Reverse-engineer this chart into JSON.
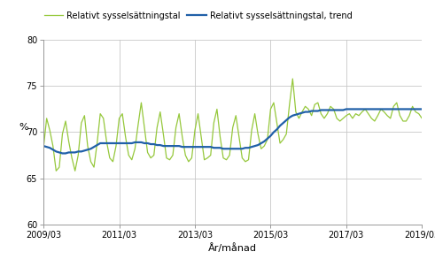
{
  "title": "",
  "ylabel": "%",
  "xlabel": "År/månad",
  "ylim": [
    60,
    80
  ],
  "yticks": [
    60,
    65,
    70,
    75,
    80
  ],
  "xtick_labels": [
    "2009/03",
    "2011/03",
    "2013/03",
    "2015/03",
    "2017/03",
    "2019/03"
  ],
  "legend_labels": [
    "Relativt sysselsättningstal",
    "Relativt sysselsättningstal, trend"
  ],
  "line_color": "#96c83c",
  "trend_color": "#2060a8",
  "background_color": "#ffffff",
  "grid_color": "#c8c8c8",
  "raw_data": [
    68.3,
    71.5,
    70.2,
    68.5,
    65.8,
    66.2,
    69.8,
    71.2,
    69.0,
    67.2,
    65.8,
    67.5,
    71.0,
    71.8,
    68.5,
    66.8,
    66.2,
    68.8,
    72.0,
    71.5,
    69.0,
    67.2,
    66.8,
    68.5,
    71.5,
    72.0,
    69.5,
    67.5,
    67.0,
    68.2,
    70.8,
    73.2,
    70.5,
    67.8,
    67.2,
    67.5,
    70.5,
    72.2,
    69.8,
    67.2,
    67.0,
    67.5,
    70.5,
    72.0,
    69.5,
    67.5,
    66.8,
    67.2,
    70.2,
    72.0,
    69.5,
    67.0,
    67.2,
    67.5,
    71.0,
    72.5,
    69.5,
    67.2,
    67.0,
    67.5,
    70.5,
    71.8,
    69.5,
    67.2,
    66.8,
    67.0,
    70.2,
    72.0,
    69.8,
    68.2,
    68.5,
    69.2,
    72.5,
    73.2,
    71.0,
    68.8,
    69.2,
    69.8,
    73.0,
    75.8,
    72.2,
    71.5,
    72.2,
    72.8,
    72.5,
    71.8,
    73.0,
    73.2,
    72.0,
    71.5,
    72.0,
    72.8,
    72.5,
    71.5,
    71.2,
    71.5,
    71.8,
    72.0,
    71.5,
    72.0,
    71.8,
    72.2,
    72.5,
    72.0,
    71.5,
    71.2,
    71.8,
    72.5,
    72.2,
    71.8,
    71.5,
    72.8,
    73.2,
    71.8,
    71.2,
    71.2,
    71.8,
    72.8,
    72.2,
    72.0,
    71.5
  ],
  "trend_data": [
    68.5,
    68.4,
    68.3,
    68.1,
    67.9,
    67.8,
    67.7,
    67.7,
    67.8,
    67.8,
    67.8,
    67.9,
    67.9,
    68.0,
    68.1,
    68.2,
    68.4,
    68.6,
    68.8,
    68.8,
    68.8,
    68.8,
    68.8,
    68.8,
    68.8,
    68.8,
    68.8,
    68.8,
    68.8,
    68.9,
    68.9,
    68.9,
    68.8,
    68.8,
    68.7,
    68.7,
    68.6,
    68.6,
    68.5,
    68.5,
    68.5,
    68.5,
    68.5,
    68.5,
    68.4,
    68.4,
    68.4,
    68.4,
    68.4,
    68.4,
    68.4,
    68.4,
    68.4,
    68.4,
    68.3,
    68.3,
    68.3,
    68.2,
    68.2,
    68.2,
    68.2,
    68.2,
    68.2,
    68.2,
    68.3,
    68.3,
    68.4,
    68.5,
    68.6,
    68.8,
    69.0,
    69.3,
    69.6,
    70.0,
    70.3,
    70.7,
    71.0,
    71.3,
    71.6,
    71.8,
    71.9,
    72.0,
    72.1,
    72.2,
    72.2,
    72.3,
    72.3,
    72.3,
    72.4,
    72.4,
    72.4,
    72.4,
    72.4,
    72.4,
    72.4,
    72.4,
    72.5,
    72.5,
    72.5,
    72.5,
    72.5,
    72.5,
    72.5,
    72.5,
    72.5,
    72.5,
    72.5,
    72.5,
    72.5,
    72.5,
    72.5,
    72.5,
    72.5,
    72.5,
    72.5,
    72.5,
    72.5,
    72.5,
    72.5,
    72.5,
    72.5
  ]
}
